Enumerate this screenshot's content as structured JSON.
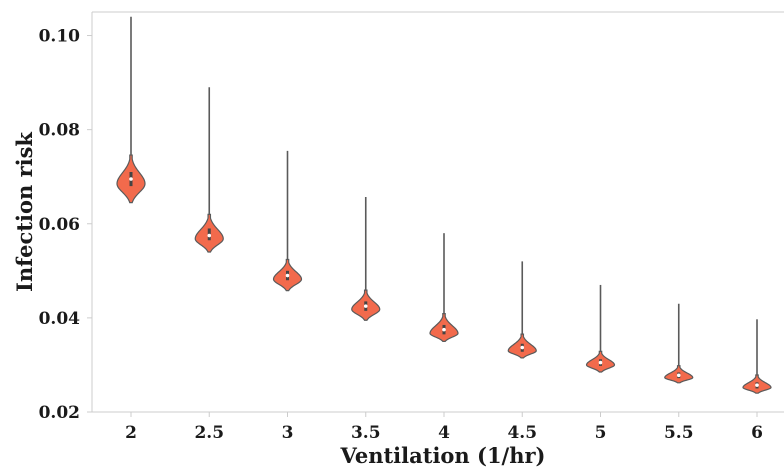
{
  "chart_data": {
    "type": "violin",
    "xlabel": "Ventilation (1/hr)",
    "ylabel": "Infection risk",
    "ylim": [
      0.02,
      0.105
    ],
    "y_ticks": [
      "0.02",
      "0.04",
      "0.06",
      "0.08",
      "0.10"
    ],
    "categories": [
      "2",
      "2.5",
      "3",
      "3.5",
      "4",
      "4.5",
      "5",
      "5.5",
      "6"
    ],
    "violins": [
      {
        "category": "2",
        "min": 0.0645,
        "q1": 0.068,
        "median": 0.0695,
        "q3": 0.071,
        "max": 0.104,
        "mode": 0.0685
      },
      {
        "category": "2.5",
        "min": 0.054,
        "q1": 0.0565,
        "median": 0.0575,
        "q3": 0.059,
        "max": 0.089,
        "mode": 0.0568
      },
      {
        "category": "3",
        "min": 0.0458,
        "q1": 0.048,
        "median": 0.049,
        "q3": 0.05,
        "max": 0.0755,
        "mode": 0.0482
      },
      {
        "category": "3.5",
        "min": 0.0395,
        "q1": 0.0415,
        "median": 0.0425,
        "q3": 0.0435,
        "max": 0.0657,
        "mode": 0.0418
      },
      {
        "category": "4",
        "min": 0.035,
        "q1": 0.0365,
        "median": 0.0375,
        "q3": 0.0385,
        "max": 0.058,
        "mode": 0.0367
      },
      {
        "category": "4.5",
        "min": 0.0315,
        "q1": 0.0328,
        "median": 0.0337,
        "q3": 0.0345,
        "max": 0.052,
        "mode": 0.033
      },
      {
        "category": "5",
        "min": 0.0285,
        "q1": 0.0298,
        "median": 0.0305,
        "q3": 0.0312,
        "max": 0.047,
        "mode": 0.03
      },
      {
        "category": "5.5",
        "min": 0.0262,
        "q1": 0.0272,
        "median": 0.0278,
        "q3": 0.0284,
        "max": 0.043,
        "mode": 0.0273
      },
      {
        "category": "6",
        "min": 0.024,
        "q1": 0.025,
        "median": 0.0257,
        "q3": 0.0263,
        "max": 0.0397,
        "mode": 0.0252
      }
    ],
    "grid": false,
    "colors": {
      "violin_fill": "#f26a4c",
      "violin_edge": "#5a5a5a",
      "whisker": "#5a5a5a",
      "median_dot": "#ffffff",
      "axis": "#cccccc"
    }
  }
}
